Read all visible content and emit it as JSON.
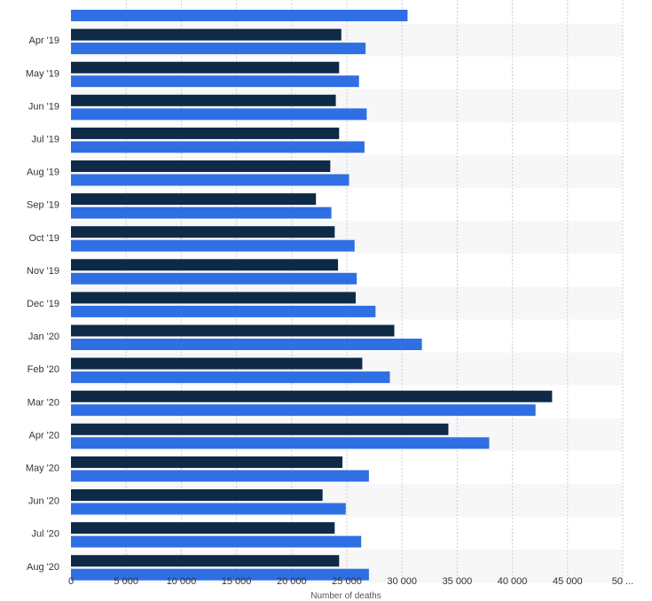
{
  "chart_data": {
    "type": "bar",
    "orientation": "horizontal",
    "categories": [
      "",
      "Apr '19",
      "May '19",
      "Jun '19",
      "Jul '19",
      "Aug '19",
      "Sep '19",
      "Oct '19",
      "Nov '19",
      "Dec '19",
      "Jan '20",
      "Feb '20",
      "Mar '20",
      "Apr '20",
      "May '20",
      "Jun '20",
      "Jul '20",
      "Aug '20"
    ],
    "series": [
      {
        "color": "#0e2a47",
        "values": [
          null,
          24500,
          24300,
          24000,
          24300,
          23500,
          22200,
          23900,
          24200,
          25800,
          29300,
          26400,
          43600,
          34200,
          24600,
          22800,
          23900,
          24300
        ]
      },
      {
        "color": "#2f6fe4",
        "values": [
          30500,
          26700,
          26100,
          26800,
          26600,
          25200,
          23600,
          25700,
          25900,
          27600,
          31800,
          28900,
          42100,
          37900,
          27000,
          24900,
          26300,
          27000
        ]
      }
    ],
    "xlabel": "Number of deaths",
    "ylabel": "",
    "title": "",
    "x_ticks": [
      "0",
      "5 000",
      "10 000",
      "15 000",
      "20 000",
      "25 000",
      "30 000",
      "35 000",
      "40 000",
      "45 000",
      "50 ..."
    ],
    "x_tick_values": [
      0,
      5000,
      10000,
      15000,
      20000,
      25000,
      30000,
      35000,
      40000,
      45000,
      50000
    ],
    "xlim": [
      0,
      50000
    ],
    "grid": "vertical dashed",
    "legend": "none"
  },
  "colors": {
    "row_band": "#f7f7f7",
    "grid": "#cccccc",
    "text": "#333333"
  }
}
